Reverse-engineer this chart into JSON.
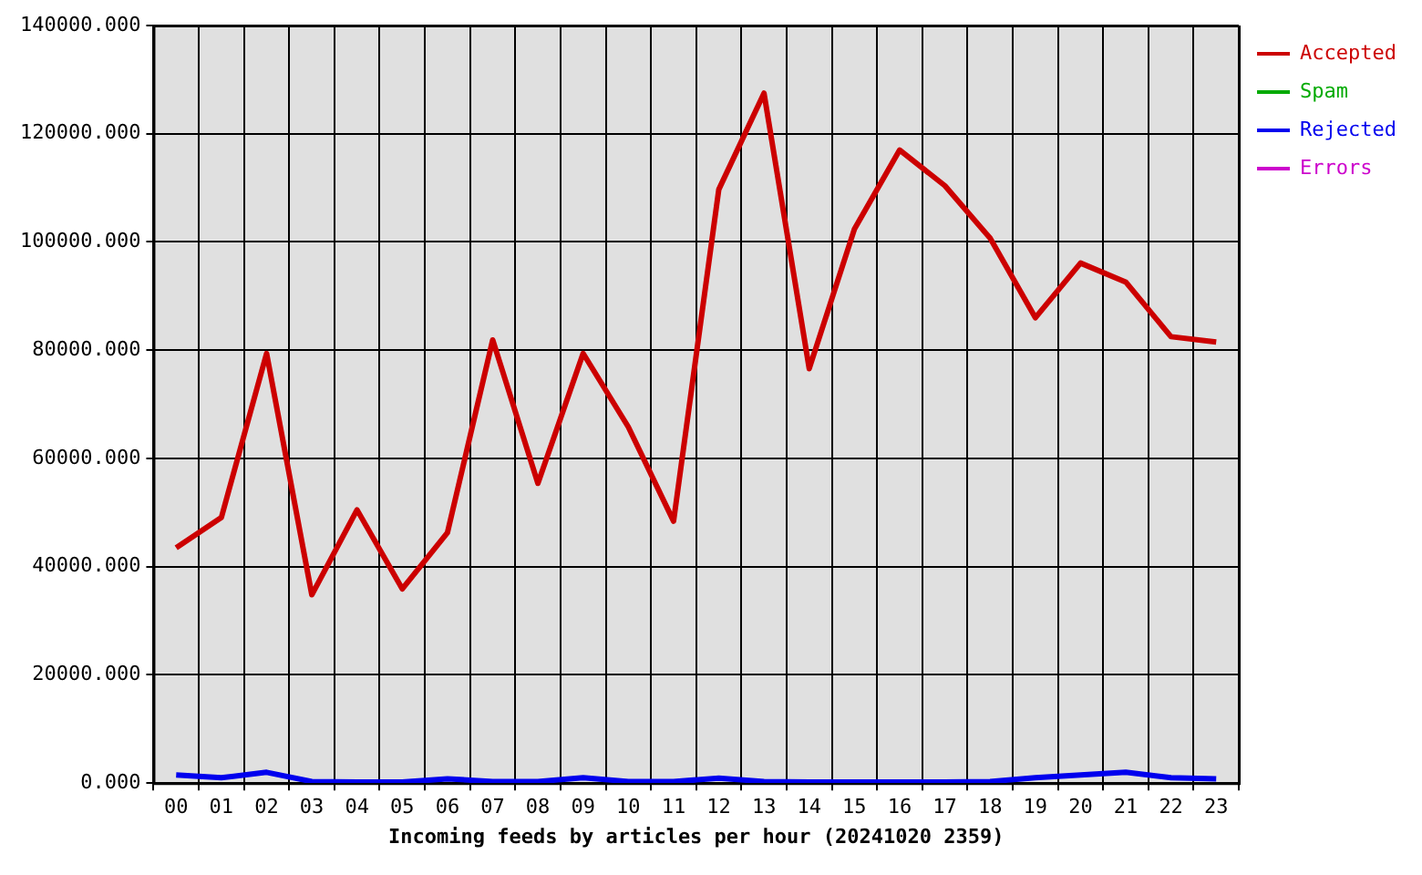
{
  "chart_data": {
    "type": "line",
    "xlabel": "Incoming feeds by articles per hour (20241020 2359)",
    "categories": [
      "00",
      "01",
      "02",
      "03",
      "04",
      "05",
      "06",
      "07",
      "08",
      "09",
      "10",
      "11",
      "12",
      "13",
      "14",
      "15",
      "16",
      "17",
      "18",
      "19",
      "20",
      "21",
      "22",
      "23"
    ],
    "series": [
      {
        "name": "Accepted",
        "color": "#cc0000",
        "values": [
          43500,
          49100,
          79400,
          34800,
          50500,
          35900,
          46300,
          81900,
          55400,
          79400,
          65800,
          48400,
          109700,
          127500,
          76600,
          102400,
          117000,
          110400,
          100700,
          86000,
          96100,
          92600,
          82500,
          81500
        ]
      },
      {
        "name": "Spam",
        "color": "#00aa00",
        "values": [
          null,
          null,
          null,
          null,
          null,
          null,
          null,
          null,
          null,
          null,
          null,
          null,
          null,
          null,
          null,
          null,
          null,
          null,
          null,
          null,
          null,
          null,
          null,
          null
        ]
      },
      {
        "name": "Rejected",
        "color": "#0000ee",
        "values": [
          1500,
          1000,
          2000,
          300,
          200,
          200,
          800,
          300,
          300,
          1000,
          300,
          300,
          900,
          300,
          200,
          200,
          200,
          200,
          300,
          1000,
          1500,
          2000,
          1000,
          800
        ]
      },
      {
        "name": "Errors",
        "color": "#cc00cc",
        "values": [
          null,
          null,
          null,
          null,
          null,
          null,
          null,
          null,
          null,
          null,
          null,
          null,
          null,
          null,
          null,
          null,
          null,
          null,
          null,
          null,
          null,
          null,
          null,
          null
        ]
      }
    ],
    "ylim": [
      0,
      140000
    ],
    "yticks": [
      {
        "value": 0,
        "label": "0.000"
      },
      {
        "value": 20000,
        "label": "20000.000"
      },
      {
        "value": 40000,
        "label": "40000.000"
      },
      {
        "value": 60000,
        "label": "60000.000"
      },
      {
        "value": 80000,
        "label": "80000.000"
      },
      {
        "value": 100000,
        "label": "100000.000"
      },
      {
        "value": 120000,
        "label": "120000.000"
      },
      {
        "value": 140000,
        "label": "140000.000"
      }
    ],
    "grid": true,
    "legend": "top right",
    "marker": "none",
    "line_style": "solid"
  }
}
